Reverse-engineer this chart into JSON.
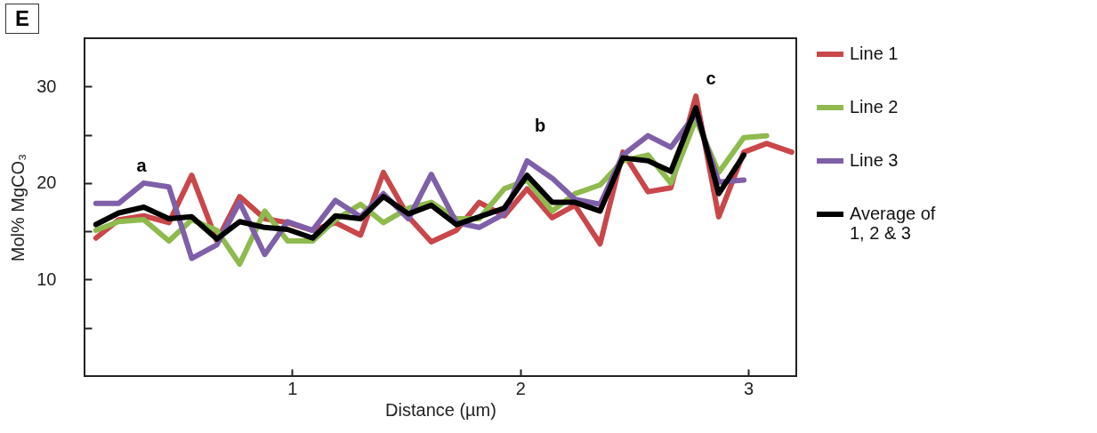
{
  "chart_data": {
    "type": "line",
    "title": "E",
    "xlabel": "Distance (µm)",
    "ylabel": "Mol% MgCO₃",
    "x": [
      0.14,
      0.24,
      0.35,
      0.46,
      0.56,
      0.67,
      0.77,
      0.88,
      0.98,
      1.09,
      1.19,
      1.3,
      1.4,
      1.51,
      1.61,
      1.72,
      1.82,
      1.93,
      2.03,
      2.14,
      2.24,
      2.35,
      2.45,
      2.56,
      2.66,
      2.77,
      2.87,
      2.98,
      3.08,
      3.19
    ],
    "series": [
      {
        "name": "Line 1",
        "color": "#c9474a",
        "values": [
          14.3,
          16.2,
          16.6,
          15.9,
          20.8,
          14.0,
          18.6,
          16.3,
          15.9,
          15.1,
          15.9,
          14.6,
          21.1,
          16.5,
          13.9,
          15.1,
          18.0,
          16.6,
          19.4,
          16.4,
          17.7,
          13.7,
          23.2,
          19.1,
          19.5,
          29.0,
          16.5,
          23.2,
          24.1,
          23.2
        ]
      },
      {
        "name": "Line 2",
        "color": "#8fba4e",
        "values": [
          15.1,
          16.0,
          16.2,
          14.0,
          16.2,
          15.1,
          11.6,
          17.1,
          14.0,
          14.0,
          16.2,
          17.8,
          15.9,
          17.4,
          18.0,
          16.3,
          16.3,
          19.4,
          20.3,
          17.1,
          18.9,
          19.8,
          22.3,
          22.9,
          20.0,
          26.6,
          21.1,
          24.7,
          24.9,
          null
        ]
      },
      {
        "name": "Line 3",
        "color": "#7f5fa8",
        "values": [
          17.9,
          17.9,
          20.0,
          19.6,
          12.2,
          13.6,
          18.0,
          12.6,
          16.0,
          15.1,
          18.2,
          16.5,
          18.9,
          16.3,
          20.9,
          15.9,
          15.4,
          16.8,
          22.3,
          20.5,
          18.3,
          17.8,
          22.9,
          24.9,
          23.7,
          27.2,
          20.1,
          20.3,
          null,
          null
        ]
      },
      {
        "name": "Average of 1, 2 & 3",
        "color": "#000000",
        "values": [
          15.7,
          16.9,
          17.5,
          16.3,
          16.5,
          14.2,
          16.0,
          15.4,
          15.2,
          14.3,
          16.6,
          16.3,
          18.6,
          16.8,
          17.7,
          15.7,
          16.5,
          17.4,
          20.8,
          18.0,
          18.0,
          17.1,
          22.6,
          22.3,
          21.2,
          27.8,
          18.9,
          22.9,
          null,
          null
        ]
      }
    ],
    "xlim": [
      0.09,
      3.21
    ],
    "xticks": [
      1,
      2,
      3
    ],
    "ylim": [
      0,
      35
    ],
    "yticks": [
      {
        "value": 5,
        "label": null
      },
      10,
      {
        "value": 15,
        "label": null
      },
      20,
      {
        "value": 25,
        "label": null
      },
      30
    ],
    "annotations": [
      "a",
      "b",
      "c"
    ],
    "grid": false,
    "legend": "right",
    "line_style": "solid",
    "marker": "none"
  }
}
